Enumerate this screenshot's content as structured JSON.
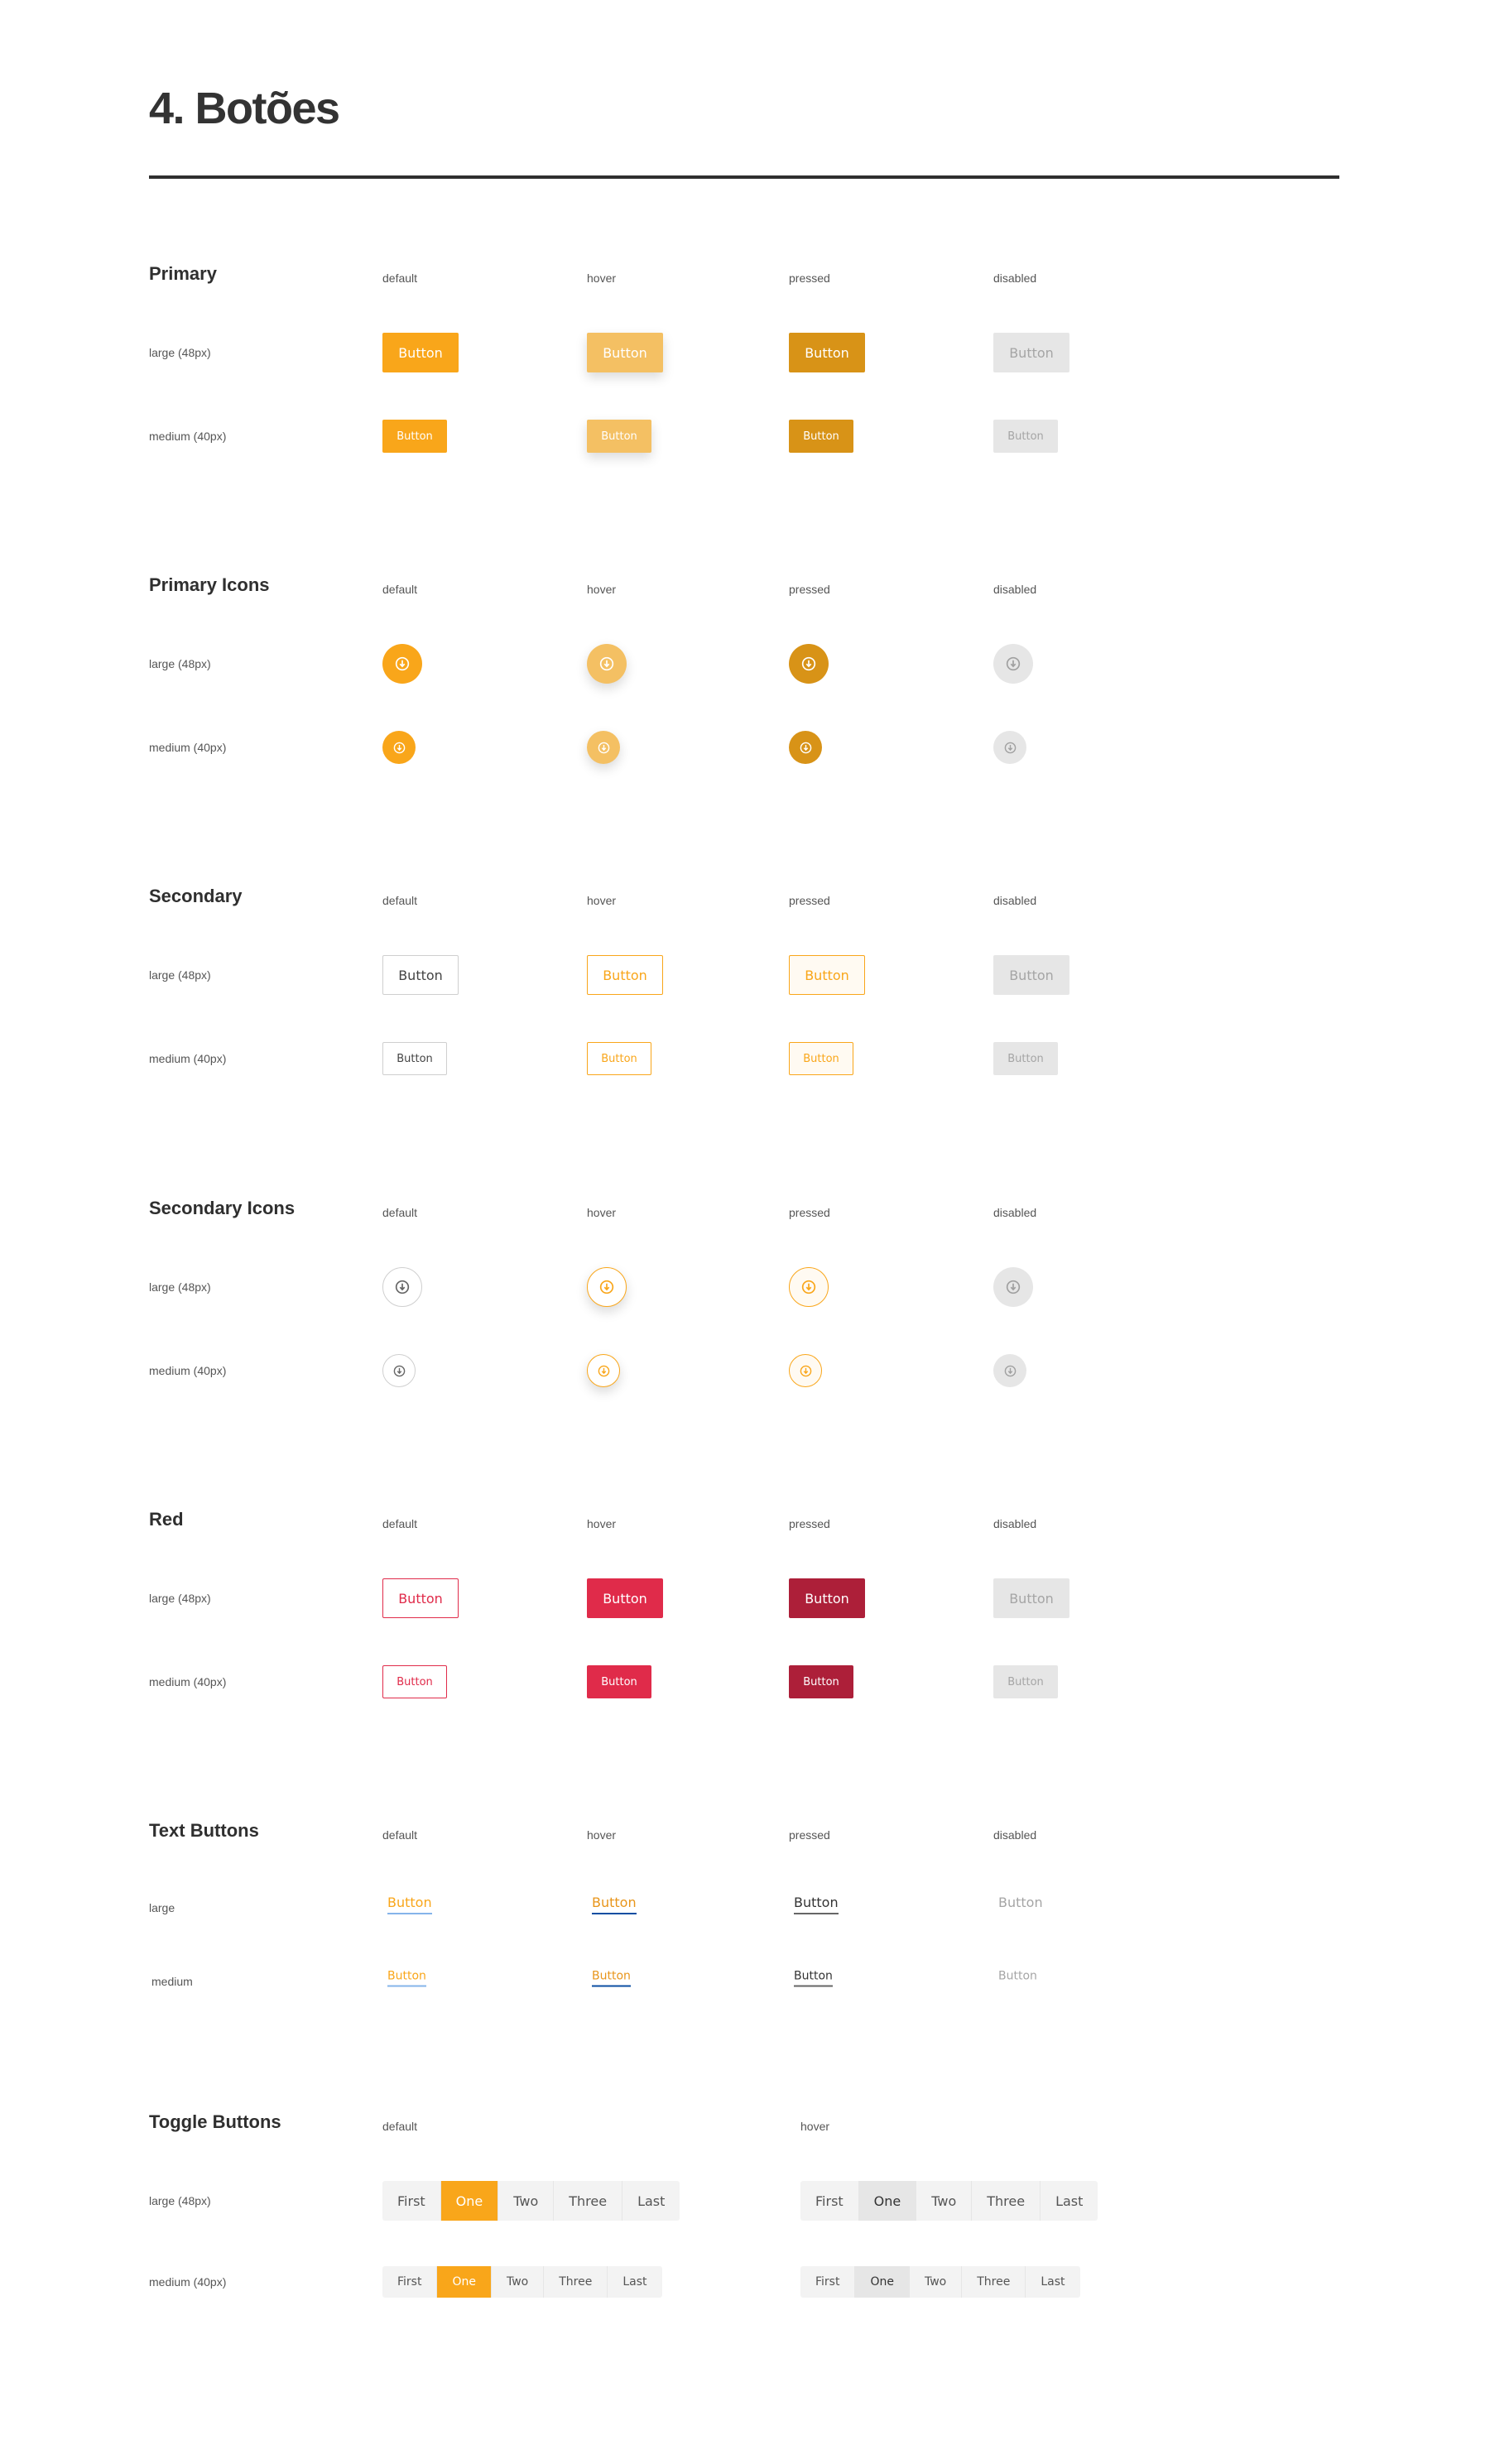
{
  "page": {
    "title": "4. Botões"
  },
  "colors": {
    "primary": "#f9a61a",
    "primary_hover": "#f4c063",
    "primary_pressed": "#d89317",
    "disabled": "#e6e6e6",
    "red": "#e02b4a",
    "red_pressed": "#ad1f39"
  },
  "states": [
    "default",
    "hover",
    "pressed",
    "disabled"
  ],
  "sizes": {
    "large": "large (48px)",
    "medium": "medium (40px)",
    "large_short": "large",
    "medium_short": "medium"
  },
  "button_label": "Button",
  "icon": "download-icon",
  "sections": [
    {
      "title": "Primary",
      "kind": "primary"
    },
    {
      "title": "Primary Icons",
      "kind": "primary-icons"
    },
    {
      "title": "Secondary",
      "kind": "secondary"
    },
    {
      "title": "Secondary Icons",
      "kind": "secondary-icons"
    },
    {
      "title": "Red",
      "kind": "red"
    },
    {
      "title": "Text Buttons",
      "kind": "text"
    },
    {
      "title": "Toggle Buttons",
      "kind": "toggle"
    }
  ],
  "toggle": {
    "states": [
      "default",
      "hover"
    ],
    "items": [
      "First",
      "One",
      "Two",
      "Three",
      "Last"
    ],
    "selected_index": 1,
    "hovered_index": 1
  }
}
